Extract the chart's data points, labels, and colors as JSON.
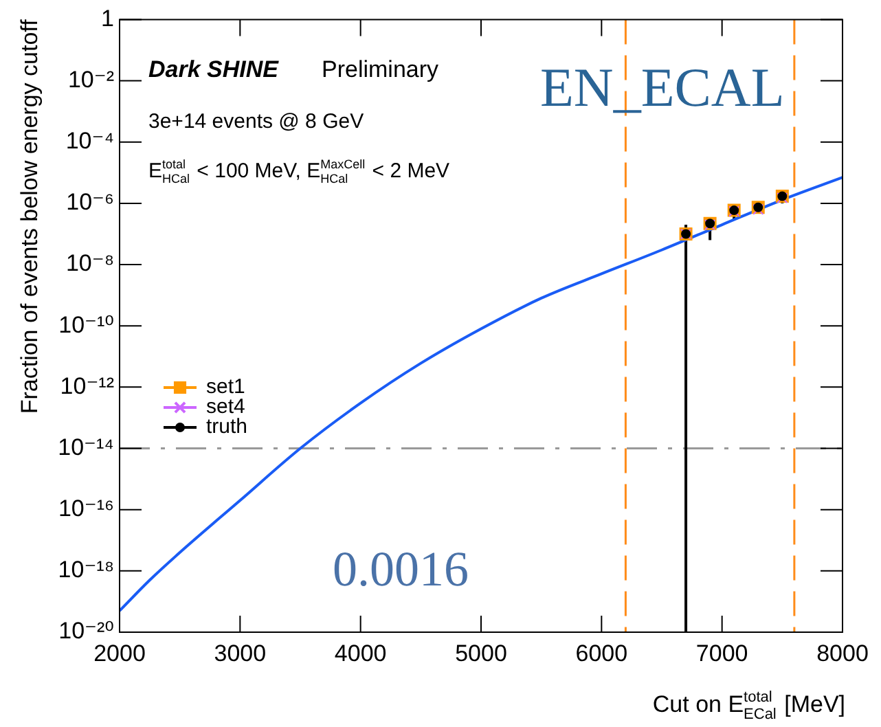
{
  "chart_data": {
    "type": "line",
    "xlabel": "Cut on E$^{total}$$_{ECal}$ [MeV]",
    "ylabel": "Fraction of events below energy cutoff",
    "annotations": [
      "Dark SHINE",
      "Preliminary",
      "3e+14 events @ 8 GeV",
      "E$^{total}$$_{HCal}$ < 100 MeV, E$^{MaxCell}$$_{HCal}$ < 2 MeV",
      "EN_ECAL",
      "0.0016"
    ],
    "log": "y",
    "grid": false,
    "legend": "left",
    "xlim": [
      2000,
      8000
    ],
    "xticks": [
      2000,
      3000,
      4000,
      5000,
      6000,
      7000,
      8000
    ],
    "ylim": [
      1e-20,
      1
    ],
    "yticks": [
      1,
      {
        "value": 0.01,
        "label": "10⁻²"
      },
      {
        "value": 0.0001,
        "label": "10⁻⁴"
      },
      {
        "value": 1e-06,
        "label": "10⁻⁶"
      },
      {
        "value": 1e-08,
        "label": "10⁻⁸"
      },
      {
        "value": 1e-10,
        "label": "10⁻¹⁰"
      },
      {
        "value": 1e-12,
        "label": "10⁻¹²"
      },
      {
        "value": 1e-14,
        "label": "10⁻¹⁴"
      },
      {
        "value": 1e-16,
        "label": "10⁻¹⁶"
      },
      {
        "value": 1e-18,
        "label": "10⁻¹⁸"
      },
      {
        "value": 1e-20,
        "label": "10⁻²⁰"
      }
    ],
    "ref_lines": [
      {
        "axis": "y",
        "value": 1e-14,
        "color": "#999999",
        "line_style": "dashed"
      },
      {
        "axis": "x",
        "value": 6200,
        "color": "#ff8c1a",
        "line_style": "dashed"
      },
      {
        "axis": "x",
        "value": 7600,
        "color": "#ff8c1a",
        "line_style": "dashed"
      }
    ],
    "series": [
      {
        "color": "#1a5cf5",
        "marker": "none",
        "x": [
          2000,
          2250,
          2500,
          3000,
          3500,
          4000,
          4500,
          5000,
          5500,
          6000,
          6500,
          7000,
          7500,
          8000
        ],
        "values": [
          5e-20,
          5e-19,
          4e-18,
          2e-16,
          1e-14,
          3e-13,
          6e-12,
          8e-11,
          8e-10,
          5e-09,
          3e-08,
          2e-07,
          1.3e-06,
          7e-06
        ]
      },
      {
        "type": "scatter",
        "name": "set1",
        "color": "#ff9900",
        "marker": "square",
        "x": [
          6700,
          6900,
          7100,
          7300,
          7500
        ],
        "values": [
          1e-07,
          2.2e-07,
          5.9e-07,
          7.4e-07,
          1.7e-06
        ]
      },
      {
        "type": "scatter",
        "name": "set4",
        "color": "#cc66ff",
        "marker": "cross",
        "x": [
          6700,
          6900,
          7100,
          7300,
          7500
        ],
        "values": [
          1e-07,
          2e-07,
          5.5e-07,
          6.3e-07,
          1.5e-06
        ]
      },
      {
        "type": "scatter",
        "name": "truth",
        "color": "#000000",
        "marker": "circle",
        "x": [
          6700,
          6900,
          7100,
          7300,
          7500
        ],
        "values": [
          1e-07,
          2.2e-07,
          5.9e-07,
          7.4e-07,
          1.7e-06
        ],
        "errors": [
          [
            1e-20,
            2e-07
          ],
          [
            6.3e-08,
            3.5e-07
          ],
          [
            3e-07,
            7.9e-07
          ],
          [
            4.8e-07,
            1e-06
          ],
          [
            1e-06,
            2.2e-06
          ]
        ]
      }
    ]
  }
}
